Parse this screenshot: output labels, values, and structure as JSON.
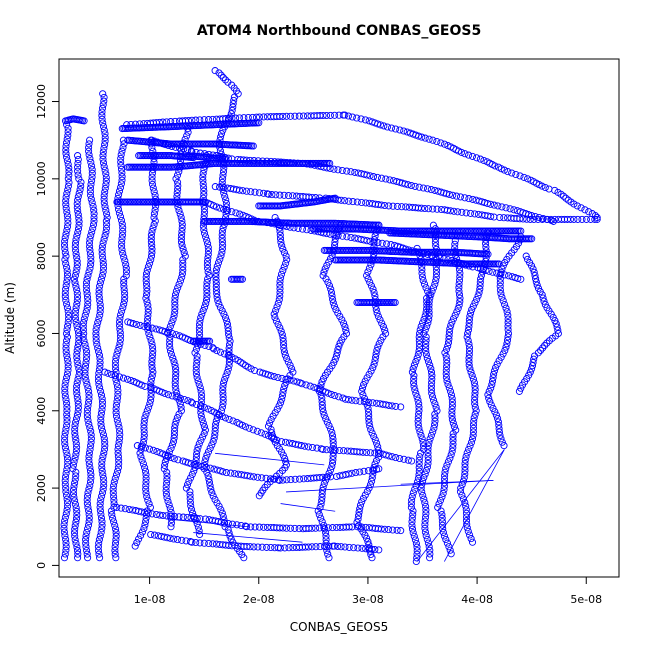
{
  "chart_data": {
    "type": "scatter",
    "title": "ATOM4 Northbound CONBAS_GEOS5",
    "xlabel": "CONBAS_GEOS5",
    "ylabel": "Altitude (m)",
    "xlim": [
      1.7e-09,
      5.3e-08
    ],
    "ylim": [
      -300,
      13100
    ],
    "x_ticks": [
      1e-08,
      2e-08,
      3e-08,
      4e-08,
      5e-08
    ],
    "x_tick_labels": [
      "1e-08",
      "2e-08",
      "3e-08",
      "4e-08",
      "5e-08"
    ],
    "y_ticks": [
      0,
      2000,
      4000,
      6000,
      8000,
      10000,
      12000
    ],
    "y_tick_labels": [
      "0",
      "2000",
      "4000",
      "6000",
      "8000",
      "10000",
      "12000"
    ],
    "marker": "open-circle",
    "color": "#0000ff",
    "grid": false,
    "series": [
      {
        "values": [
          [
            2.2e-09,
            200
          ],
          [
            2.4e-09,
            2000
          ],
          [
            2.3e-09,
            4000
          ],
          [
            2.5e-09,
            6000
          ],
          [
            2.3e-09,
            8000
          ],
          [
            2.5e-09,
            10000
          ],
          [
            2.4e-09,
            11400
          ]
        ]
      },
      {
        "values": [
          [
            3.3e-09,
            200
          ],
          [
            3.1e-09,
            2500
          ],
          [
            3.5e-09,
            5000
          ],
          [
            3.2e-09,
            7500
          ],
          [
            3.6e-09,
            10000
          ],
          [
            3.4e-09,
            10600
          ]
        ]
      },
      {
        "values": [
          [
            4.2e-09,
            200
          ],
          [
            4.6e-09,
            3000
          ],
          [
            4e-09,
            6000
          ],
          [
            4.8e-09,
            9000
          ],
          [
            4.5e-09,
            11000
          ]
        ]
      },
      {
        "values": [
          [
            5.4e-09,
            200
          ],
          [
            5.8e-09,
            3000
          ],
          [
            5.2e-09,
            6000
          ],
          [
            6e-09,
            9000
          ],
          [
            5.7e-09,
            12200
          ]
        ]
      },
      {
        "values": [
          [
            7e-09,
            200
          ],
          [
            6.6e-09,
            1500
          ],
          [
            7.2e-09,
            3000
          ],
          [
            6.9e-09,
            5000
          ],
          [
            7.8e-09,
            7500
          ],
          [
            7.2e-09,
            9400
          ],
          [
            7.6e-09,
            11000
          ]
        ]
      },
      {
        "values": [
          [
            8.8e-09,
            500
          ],
          [
            1e-08,
            1500
          ],
          [
            9.2e-09,
            3000
          ],
          [
            1.04e-08,
            5000
          ],
          [
            9.6e-09,
            7000
          ],
          [
            1.05e-08,
            9000
          ],
          [
            1.02e-08,
            11000
          ]
        ]
      },
      {
        "values": [
          [
            1.2e-08,
            1000
          ],
          [
            1.14e-08,
            2500
          ],
          [
            1.28e-08,
            4000
          ],
          [
            1.18e-08,
            6000
          ],
          [
            1.32e-08,
            8000
          ],
          [
            1.24e-08,
            10000
          ],
          [
            1.35e-08,
            11300
          ]
        ]
      },
      {
        "values": [
          [
            1.45e-08,
            800
          ],
          [
            1.35e-08,
            2000
          ],
          [
            1.5e-08,
            3500
          ],
          [
            1.42e-08,
            5500
          ],
          [
            1.55e-08,
            7500
          ],
          [
            1.48e-08,
            9500
          ],
          [
            1.52e-08,
            10600
          ]
        ]
      },
      {
        "values": [
          [
            1.85e-08,
            200
          ],
          [
            1.7e-08,
            1000
          ],
          [
            1.5e-08,
            2500
          ],
          [
            1.65e-08,
            4000
          ],
          [
            1.75e-08,
            5800
          ],
          [
            1.6e-08,
            7200
          ],
          [
            1.7e-08,
            9000
          ],
          [
            1.65e-08,
            11000
          ],
          [
            1.8e-08,
            12200
          ],
          [
            1.73e-08,
            12500
          ],
          [
            1.6e-08,
            12800
          ]
        ]
      },
      {
        "values": [
          [
            2e-08,
            1800
          ],
          [
            2.25e-08,
            2600
          ],
          [
            2.1e-08,
            3600
          ],
          [
            2.3e-08,
            5000
          ],
          [
            2.15e-08,
            6500
          ],
          [
            2.25e-08,
            8000
          ],
          [
            2.15e-08,
            9000
          ]
        ]
      },
      {
        "values": [
          [
            2.65e-08,
            200
          ],
          [
            2.55e-08,
            1500
          ],
          [
            2.7e-08,
            3000
          ],
          [
            2.55e-08,
            4500
          ],
          [
            2.8e-08,
            6000
          ],
          [
            2.6e-08,
            7500
          ],
          [
            2.75e-08,
            8800
          ]
        ]
      },
      {
        "values": [
          [
            3.05e-08,
            200
          ],
          [
            2.9e-08,
            1200
          ],
          [
            3.1e-08,
            2800
          ],
          [
            2.95e-08,
            4500
          ],
          [
            3.15e-08,
            6000
          ],
          [
            3e-08,
            7500
          ],
          [
            3.1e-08,
            8800
          ]
        ]
      },
      {
        "values": [
          [
            3.45e-08,
            100
          ],
          [
            3.4e-08,
            1500
          ],
          [
            3.5e-08,
            3000
          ],
          [
            3.42e-08,
            5000
          ],
          [
            3.55e-08,
            7000
          ],
          [
            3.45e-08,
            8200
          ]
        ]
      },
      {
        "values": [
          [
            3.56e-08,
            200
          ],
          [
            3.5e-08,
            2000
          ],
          [
            3.62e-08,
            4000
          ],
          [
            3.52e-08,
            6000
          ],
          [
            3.65e-08,
            8000
          ],
          [
            3.6e-08,
            8800
          ]
        ]
      },
      {
        "values": [
          [
            3.75e-08,
            300
          ],
          [
            3.65e-08,
            1500
          ],
          [
            3.8e-08,
            3500
          ],
          [
            3.7e-08,
            5500
          ],
          [
            3.85e-08,
            7000
          ],
          [
            3.8e-08,
            8400
          ]
        ]
      },
      {
        "values": [
          [
            3.95e-08,
            600
          ],
          [
            3.85e-08,
            2000
          ],
          [
            4e-08,
            4000
          ],
          [
            3.9e-08,
            6000
          ],
          [
            4.05e-08,
            7500
          ],
          [
            4.1e-08,
            8600
          ]
        ]
      },
      {
        "values": [
          [
            4.25e-08,
            3100
          ],
          [
            4.1e-08,
            4500
          ],
          [
            4.3e-08,
            6000
          ],
          [
            4.2e-08,
            7500
          ],
          [
            4.4e-08,
            8500
          ]
        ]
      },
      {
        "values": [
          [
            4.4e-08,
            4500
          ],
          [
            4.55e-08,
            5500
          ],
          [
            4.75e-08,
            6000
          ],
          [
            4.6e-08,
            7000
          ],
          [
            4.45e-08,
            8000
          ]
        ]
      },
      {
        "values": [
          [
            8e-09,
            11400
          ],
          [
            1.3e-08,
            11500
          ],
          [
            2e-08,
            11600
          ],
          [
            2.8e-08,
            11650
          ],
          [
            3e-08,
            11500
          ],
          [
            3.6e-08,
            11000
          ],
          [
            4.2e-08,
            10300
          ],
          [
            4.7e-08,
            9700
          ],
          [
            5.1e-08,
            9000
          ]
        ]
      },
      {
        "values": [
          [
            1.6e-08,
            9800
          ],
          [
            2.1e-08,
            9600
          ],
          [
            2.6e-08,
            9500
          ],
          [
            3.2e-08,
            9300
          ],
          [
            3.7e-08,
            9200
          ],
          [
            4.2e-08,
            9000
          ],
          [
            4.5e-08,
            8950
          ],
          [
            5.1e-08,
            8950
          ]
        ]
      },
      {
        "values": [
          [
            1e-08,
            11000
          ],
          [
            1.4e-08,
            10700
          ],
          [
            1.8e-08,
            10500
          ],
          [
            2.4e-08,
            10400
          ],
          [
            3e-08,
            10100
          ],
          [
            3.6e-08,
            9700
          ],
          [
            4.2e-08,
            9300
          ],
          [
            4.7e-08,
            8900
          ]
        ]
      },
      {
        "values": [
          [
            1.5e-08,
            9400
          ],
          [
            2e-08,
            8900
          ],
          [
            2.6e-08,
            8600
          ],
          [
            3.2e-08,
            8300
          ],
          [
            3.6e-08,
            8000
          ],
          [
            4e-08,
            7700
          ],
          [
            4.4e-08,
            7400
          ]
        ]
      },
      {
        "values": [
          [
            8e-09,
            6300
          ],
          [
            1.2e-08,
            6000
          ],
          [
            1.6e-08,
            5600
          ],
          [
            2e-08,
            5000
          ],
          [
            2.4e-08,
            4700
          ],
          [
            2.8e-08,
            4300
          ],
          [
            3.3e-08,
            4100
          ]
        ]
      },
      {
        "values": [
          [
            6e-09,
            5000
          ],
          [
            1e-08,
            4600
          ],
          [
            1.4e-08,
            4200
          ],
          [
            1.8e-08,
            3700
          ],
          [
            2.2e-08,
            3200
          ],
          [
            2.6e-08,
            3000
          ],
          [
            3.1e-08,
            2900
          ],
          [
            3.4e-08,
            2700
          ]
        ]
      },
      {
        "values": [
          [
            9e-09,
            3100
          ],
          [
            1.3e-08,
            2700
          ],
          [
            1.7e-08,
            2400
          ],
          [
            2.2e-08,
            2200
          ],
          [
            2.7e-08,
            2300
          ],
          [
            3.1e-08,
            2500
          ]
        ]
      },
      {
        "values": [
          [
            7e-09,
            1500
          ],
          [
            1.1e-08,
            1300
          ],
          [
            1.5e-08,
            1200
          ],
          [
            1.9e-08,
            1000
          ],
          [
            2.4e-08,
            950
          ],
          [
            2.9e-08,
            1000
          ],
          [
            3.3e-08,
            900
          ]
        ]
      },
      {
        "values": [
          [
            1e-08,
            800
          ],
          [
            1.4e-08,
            600
          ],
          [
            1.8e-08,
            500
          ],
          [
            2.2e-08,
            450
          ],
          [
            2.7e-08,
            500
          ],
          [
            3.1e-08,
            400
          ]
        ]
      },
      {
        "values": [
          [
            7.5e-09,
            11300
          ],
          [
            1.2e-08,
            11350
          ],
          [
            1.6e-08,
            11400
          ],
          [
            2e-08,
            11450
          ]
        ],
        "dense": true
      },
      {
        "values": [
          [
            8e-09,
            11000
          ],
          [
            1.2e-08,
            10900
          ],
          [
            1.6e-08,
            10900
          ],
          [
            1.95e-08,
            10850
          ]
        ],
        "dense": true
      },
      {
        "values": [
          [
            9e-09,
            10600
          ],
          [
            1.2e-08,
            10600
          ],
          [
            1.4e-08,
            10550
          ]
        ],
        "dense": true
      },
      {
        "values": [
          [
            8e-09,
            10300
          ],
          [
            1.2e-08,
            10300
          ],
          [
            1.6e-08,
            10400
          ],
          [
            2e-08,
            10400
          ],
          [
            2.4e-08,
            10400
          ],
          [
            2.65e-08,
            10400
          ]
        ],
        "dense": true
      },
      {
        "values": [
          [
            7e-09,
            9400
          ],
          [
            1e-08,
            9400
          ],
          [
            1.3e-08,
            9400
          ],
          [
            1.5e-08,
            9400
          ]
        ],
        "dense": true
      },
      {
        "values": [
          [
            2e-08,
            9300
          ],
          [
            2.2e-08,
            9300
          ],
          [
            2.5e-08,
            9400
          ],
          [
            2.7e-08,
            9500
          ]
        ],
        "dense": true
      },
      {
        "values": [
          [
            1.5e-08,
            8900
          ],
          [
            1.9e-08,
            8900
          ],
          [
            2.3e-08,
            8850
          ],
          [
            2.7e-08,
            8850
          ],
          [
            3.1e-08,
            8800
          ]
        ],
        "dense": true
      },
      {
        "values": [
          [
            2.5e-08,
            8700
          ],
          [
            2.9e-08,
            8700
          ],
          [
            3.3e-08,
            8650
          ],
          [
            3.7e-08,
            8650
          ],
          [
            4.1e-08,
            8650
          ],
          [
            4.4e-08,
            8650
          ]
        ],
        "dense": true
      },
      {
        "values": [
          [
            3.2e-08,
            8600
          ],
          [
            3.6e-08,
            8550
          ],
          [
            4e-08,
            8500
          ],
          [
            4.3e-08,
            8450
          ],
          [
            4.5e-08,
            8450
          ]
        ],
        "dense": true
      },
      {
        "values": [
          [
            2.6e-08,
            8150
          ],
          [
            3e-08,
            8150
          ],
          [
            3.4e-08,
            8100
          ],
          [
            3.8e-08,
            8100
          ],
          [
            4.1e-08,
            8050
          ]
        ],
        "dense": true
      },
      {
        "values": [
          [
            2.7e-08,
            7900
          ],
          [
            3.1e-08,
            7900
          ],
          [
            3.5e-08,
            7850
          ],
          [
            3.9e-08,
            7800
          ],
          [
            4.2e-08,
            7800
          ]
        ],
        "dense": true
      },
      {
        "values": [
          [
            2.9e-08,
            6800
          ],
          [
            3.1e-08,
            6800
          ],
          [
            3.25e-08,
            6800
          ]
        ],
        "dense": true
      },
      {
        "values": [
          [
            1.75e-08,
            7400
          ],
          [
            1.85e-08,
            7400
          ]
        ],
        "dense": true
      },
      {
        "values": [
          [
            1.4e-08,
            5800
          ],
          [
            1.55e-08,
            5800
          ]
        ],
        "dense": true
      },
      {
        "values": [
          [
            1.35e-08,
            10600
          ],
          [
            1.55e-08,
            10550
          ],
          [
            1.7e-08,
            10500
          ]
        ],
        "dense": true
      },
      {
        "values": [
          [
            2.3e-09,
            11500
          ],
          [
            3e-09,
            11550
          ],
          [
            4e-09,
            11500
          ]
        ],
        "dense": true
      }
    ],
    "connectors": [
      [
        [
          2.25e-08,
          1900
        ],
        [
          4.15e-08,
          2200
        ]
      ],
      [
        [
          4.15e-08,
          2200
        ],
        [
          3.3e-08,
          2100
        ]
      ],
      [
        [
          2.2e-08,
          1600
        ],
        [
          2.7e-08,
          1400
        ]
      ],
      [
        [
          1.6e-08,
          2900
        ],
        [
          2.6e-08,
          2600
        ]
      ],
      [
        [
          4.25e-08,
          3000
        ],
        [
          3.45e-08,
          100
        ]
      ],
      [
        [
          3.7e-08,
          100
        ],
        [
          4.25e-08,
          3000
        ]
      ],
      [
        [
          1.15e-08,
          1200
        ],
        [
          1.9e-08,
          1000
        ]
      ],
      [
        [
          1.4e-08,
          850
        ],
        [
          2.4e-08,
          600
        ]
      ]
    ]
  }
}
